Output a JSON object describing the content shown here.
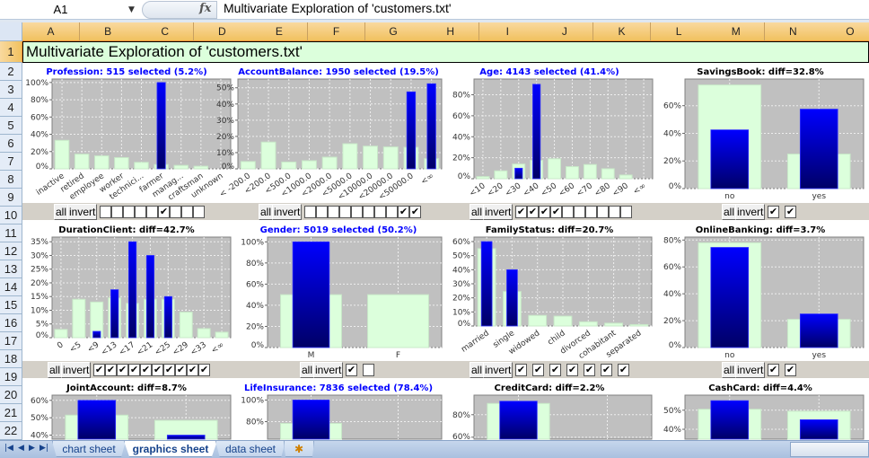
{
  "formula_bar": {
    "name_box": "A1",
    "fx_label": "fx",
    "formula": "Multivariate Exploration of 'customers.txt'"
  },
  "columns": [
    "A",
    "B",
    "C",
    "D",
    "E",
    "F",
    "G",
    "H",
    "I",
    "J",
    "K",
    "L",
    "M",
    "N",
    "O"
  ],
  "rows": [
    "1",
    "2",
    "3",
    "4",
    "5",
    "6",
    "7",
    "8",
    "9",
    "10",
    "11",
    "12",
    "13",
    "14",
    "15",
    "16",
    "17",
    "18",
    "19",
    "20",
    "21",
    "22"
  ],
  "cell_A1": "Multivariate Exploration of 'customers.txt'",
  "controls": {
    "all_label": "all",
    "invert_label": "invert",
    "check_mark": "✔"
  },
  "colors": {
    "plot_bg": "#c0c0c0",
    "base_bar": "#dcffdc",
    "selected_top": "#0000ff",
    "selected_bottom": "#000066",
    "title_selected": "#0000ff",
    "title_diff": "#000000",
    "band": "#d4d0c8"
  },
  "sheet_tabs": [
    {
      "label": "chart sheet",
      "active": false
    },
    {
      "label": "graphics sheet",
      "active": true
    },
    {
      "label": "data sheet",
      "active": false
    }
  ],
  "chart_data": [
    {
      "type": "bar",
      "title": "Profession: 515 selected (5.2%)",
      "title_color": "#0000ff",
      "categories": [
        "inactive",
        "retired",
        "employee",
        "worker",
        "technici...",
        "farmer",
        "manag...",
        "craftsman",
        "unknown"
      ],
      "base": [
        33,
        17,
        15,
        13,
        7.5,
        5,
        4,
        3,
        0
      ],
      "selected": [
        0,
        0,
        0,
        0,
        0,
        100,
        0,
        0,
        0
      ],
      "ticks": [
        "0%",
        "20%",
        "40%",
        "60%",
        "80%",
        "100%"
      ],
      "tick_values": [
        0,
        20,
        40,
        60,
        80,
        100
      ],
      "ylim": [
        0,
        104
      ],
      "checks": [
        false,
        false,
        false,
        false,
        false,
        true,
        false,
        false,
        false
      ]
    },
    {
      "type": "bar",
      "title": "AccountBalance: 1950 selected (19.5%)",
      "title_color": "#0000ff",
      "categories": [
        "< -200.0",
        "<200.0",
        "<500.0",
        "<1000.0",
        "<2000.0",
        "<5000.0",
        "<10000.0",
        "<20000.0",
        "<50000.0",
        "<∞"
      ],
      "base": [
        4.5,
        16.5,
        4.2,
        5,
        7.2,
        15.5,
        14,
        13.5,
        13.3,
        6.3
      ],
      "selected": [
        0,
        0,
        0,
        0,
        0,
        0,
        0,
        0,
        47.5,
        52.5
      ],
      "ticks": [
        "0%",
        "10%",
        "20%",
        "30%",
        "40%",
        "50%"
      ],
      "tick_values": [
        0,
        10,
        20,
        30,
        40,
        50
      ],
      "ylim": [
        0,
        55.4
      ],
      "checks": [
        false,
        false,
        false,
        false,
        false,
        false,
        false,
        false,
        true,
        true
      ]
    },
    {
      "type": "bar",
      "title": "Age: 4143 selected (41.4%)",
      "title_color": "#0000ff",
      "categories": [
        "<10",
        "<20",
        "<30",
        "<40",
        "<50",
        "<60",
        "<70",
        "<80",
        "<90",
        "<∞"
      ],
      "base": [
        2,
        7.5,
        14,
        17.5,
        19,
        11.5,
        13.5,
        9.5,
        3.5,
        0
      ],
      "selected": [
        0,
        0,
        10,
        90,
        0,
        0,
        0,
        0,
        0,
        0
      ],
      "ticks": [
        "0%",
        "20%",
        "40%",
        "60%",
        "80%"
      ],
      "tick_values": [
        0,
        20,
        40,
        60,
        80
      ],
      "ylim": [
        0,
        95
      ],
      "checks": [
        true,
        true,
        true,
        true,
        false,
        false,
        false,
        false,
        false,
        false
      ]
    },
    {
      "type": "bar",
      "title": "SavingsBook: diff=32.8%",
      "title_color": "#000000",
      "categories": [
        "no",
        "yes"
      ],
      "base": [
        75,
        25
      ],
      "selected": [
        42.5,
        57.5
      ],
      "ticks": [
        "0%",
        "20%",
        "40%",
        "60%"
      ],
      "tick_values": [
        0,
        20,
        40,
        60
      ],
      "ylim": [
        0,
        79.3
      ],
      "checks": [
        true,
        true
      ]
    },
    {
      "type": "bar",
      "title": "DurationClient: diff=42.7%",
      "title_color": "#000000",
      "categories": [
        "0",
        "<5",
        "<9",
        "<13",
        "<17",
        "<21",
        "<25",
        "<29",
        "<33",
        "<∞"
      ],
      "base": [
        3,
        14,
        13,
        14.5,
        12.5,
        14,
        14,
        9.3,
        3.3,
        2
      ],
      "selected": [
        0,
        0,
        2.3,
        17.5,
        35,
        30,
        15,
        0,
        0,
        0
      ],
      "ticks": [
        "0%",
        "5%",
        "10%",
        "15%",
        "20%",
        "25%",
        "30%",
        "35%"
      ],
      "tick_values": [
        0,
        5,
        10,
        15,
        20,
        25,
        30,
        35
      ],
      "ylim": [
        0,
        36.7
      ],
      "checks": [
        true,
        true,
        true,
        true,
        true,
        true,
        true,
        true,
        true,
        true
      ]
    },
    {
      "type": "bar",
      "title": "Gender: 5019 selected (50.2%)",
      "title_color": "#0000ff",
      "categories": [
        "M",
        "F"
      ],
      "base": [
        50,
        50
      ],
      "selected": [
        100,
        0
      ],
      "ticks": [
        "0%",
        "20%",
        "40%",
        "60%",
        "80%",
        "100%"
      ],
      "tick_values": [
        0,
        20,
        40,
        60,
        80,
        100
      ],
      "ylim": [
        0,
        104.5
      ],
      "checks": [
        true,
        false
      ]
    },
    {
      "type": "bar",
      "title": "FamilyStatus: diff=20.7%",
      "title_color": "#000000",
      "categories": [
        "married",
        "single",
        "widowed",
        "child",
        "divorced",
        "cohabitant",
        "separated"
      ],
      "base": [
        55,
        24.5,
        7.5,
        7,
        3,
        2,
        1
      ],
      "selected": [
        60,
        40,
        0,
        0,
        0,
        0,
        0
      ],
      "ticks": [
        "0%",
        "10%",
        "20%",
        "30%",
        "40%",
        "50%",
        "60%"
      ],
      "tick_values": [
        0,
        10,
        20,
        30,
        40,
        50,
        60
      ],
      "ylim": [
        0,
        63.2
      ],
      "checks": [
        true,
        true,
        true,
        true,
        true,
        true,
        true
      ]
    },
    {
      "type": "bar",
      "title": "OnlineBanking: diff=3.7%",
      "title_color": "#000000",
      "categories": [
        "no",
        "yes"
      ],
      "base": [
        78,
        21
      ],
      "selected": [
        74.5,
        25
      ],
      "ticks": [
        "0%",
        "20%",
        "40%",
        "60%",
        "80%"
      ],
      "tick_values": [
        0,
        20,
        40,
        60,
        80
      ],
      "ylim": [
        0,
        82.2
      ],
      "checks": [
        true,
        true
      ]
    },
    {
      "type": "bar",
      "title": "JointAccount: diff=8.7%",
      "title_color": "#000000",
      "categories": [],
      "base": [
        51.5,
        48.5
      ],
      "selected": [
        60,
        40
      ],
      "ticks": [
        "40%",
        "50%",
        "60%"
      ],
      "tick_values": [
        40,
        50,
        60
      ],
      "ylim": [
        0,
        63
      ]
    },
    {
      "type": "bar",
      "title": "LifeInsurance: 7836 selected (78.4%)",
      "title_color": "#0000ff",
      "categories": [],
      "base": [
        78.4,
        21.6
      ],
      "selected": [
        100,
        0
      ],
      "ticks": [
        "60%",
        "80%",
        "100%"
      ],
      "tick_values": [
        60,
        80,
        100
      ],
      "ylim": [
        0,
        104.5
      ]
    },
    {
      "type": "bar",
      "title": "CreditCard: diff=2.2%",
      "title_color": "#000000",
      "categories": [],
      "base": [
        90,
        10
      ],
      "selected": [
        92,
        8
      ],
      "ticks": [
        "60%",
        "80%"
      ],
      "tick_values": [
        60,
        80
      ],
      "ylim": [
        0,
        97.4
      ]
    },
    {
      "type": "bar",
      "title": "CashCard: diff=4.4%",
      "title_color": "#000000",
      "categories": [],
      "base": [
        50.5,
        49.5
      ],
      "selected": [
        55,
        45
      ],
      "ticks": [
        "40%",
        "50%"
      ],
      "tick_values": [
        40,
        50
      ],
      "ylim": [
        0,
        57.9
      ]
    }
  ]
}
